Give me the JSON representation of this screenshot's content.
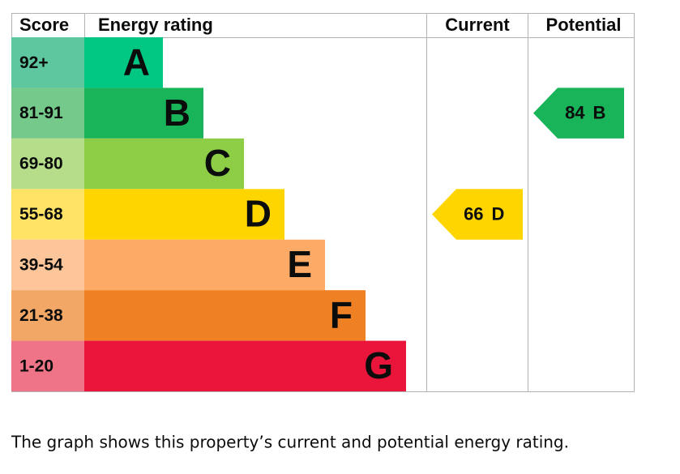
{
  "chart_data": {
    "type": "epc",
    "headers": {
      "score": "Score",
      "rating": "Energy rating",
      "current": "Current",
      "potential": "Potential"
    },
    "bands": [
      {
        "score": "92+",
        "letter": "A",
        "color": "#00c781",
        "score_color": "#5fc7a0"
      },
      {
        "score": "81-91",
        "letter": "B",
        "color": "#19b459",
        "score_color": "#75c98a"
      },
      {
        "score": "69-80",
        "letter": "C",
        "color": "#8dce46",
        "score_color": "#b5dd8a"
      },
      {
        "score": "55-68",
        "letter": "D",
        "color": "#ffd500",
        "score_color": "#ffe366"
      },
      {
        "score": "39-54",
        "letter": "E",
        "color": "#fcaa65",
        "score_color": "#fdc69a"
      },
      {
        "score": "21-38",
        "letter": "F",
        "color": "#ef8023",
        "score_color": "#f3a767"
      },
      {
        "score": "1-20",
        "letter": "G",
        "color": "#e9153b",
        "score_color": "#f07487"
      }
    ],
    "current": {
      "value": 66,
      "letter": "D"
    },
    "potential": {
      "value": 84,
      "letter": "B"
    }
  },
  "caption": "The graph shows this property’s current and potential energy rating."
}
